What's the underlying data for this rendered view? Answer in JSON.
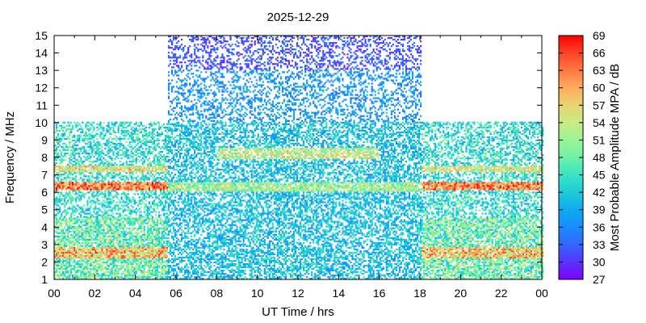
{
  "chart_data": {
    "type": "heatmap",
    "title": "2025-12-29",
    "xlabel": "UT Time / hrs",
    "ylabel": "Frequency / MHz",
    "colorbar_label": "Most Probable Amplitude MPA / dB",
    "xlim": [
      0,
      24
    ],
    "ylim": [
      1,
      15
    ],
    "x_ticks": [
      "00",
      "02",
      "04",
      "06",
      "08",
      "10",
      "12",
      "14",
      "16",
      "18",
      "20",
      "22",
      "00"
    ],
    "y_ticks": [
      "1",
      "2",
      "3",
      "4",
      "5",
      "6",
      "7",
      "8",
      "9",
      "10",
      "11",
      "12",
      "13",
      "14",
      "15"
    ],
    "colorbar_ticks": [
      "27",
      "30",
      "33",
      "36",
      "39",
      "42",
      "45",
      "48",
      "51",
      "54",
      "57",
      "60",
      "63",
      "66",
      "69"
    ],
    "colorbar_colors": [
      "#7f00ff",
      "#5a33ff",
      "#3366ff",
      "#1a8cff",
      "#10aaee",
      "#1ecbd8",
      "#3ae3c2",
      "#6ef2a8",
      "#9cf596",
      "#c8eb84",
      "#e8d474",
      "#ffac5e",
      "#ff7a44",
      "#ff4427",
      "#ff0000"
    ],
    "grid": false,
    "description_regions": [
      {
        "t_start": 0,
        "t_end": 5.6,
        "f_min": 1,
        "f_max": 10,
        "typical_db": 42
      },
      {
        "t_start": 5.6,
        "t_end": 18,
        "f_min": 1,
        "f_max": 15,
        "typical_db": 39
      },
      {
        "t_start": 18,
        "t_end": 24,
        "f_min": 1,
        "f_max": 10,
        "typical_db": 42
      }
    ]
  }
}
